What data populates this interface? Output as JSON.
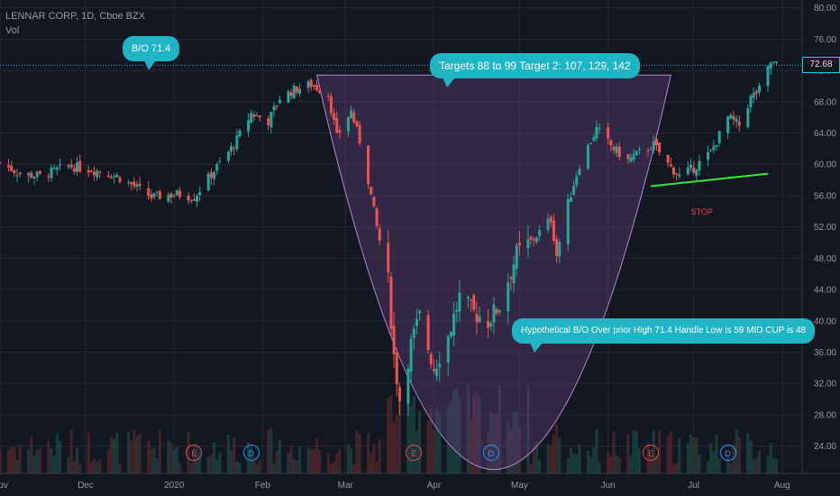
{
  "header": {
    "symbol_line": "LENNAR CORP, 1D, Cboe BZX",
    "volume_label": "Vol"
  },
  "last_price": "72.68",
  "colors": {
    "background": "#131722",
    "up": "#26a69a",
    "down": "#ef5350",
    "cup_fill": "#5c3b73",
    "cup_line": "#b388d9",
    "trendline": "#39e639",
    "callout": "#1fb5c4"
  },
  "annotations": {
    "bo_label": "B/O 71.4",
    "targets": "Targets  88 to 99 Target 2: 107, 129, 142",
    "hypothetical": "Hypothetical B/O Over prior High 71.4 Handle Low is 59 MID CUP is 48",
    "stop": "STOP"
  },
  "events": [
    {
      "type": "E",
      "date": "2020-01-08"
    },
    {
      "type": "D",
      "date": "2020-01-28"
    },
    {
      "type": "E",
      "date": "2020-03-25"
    },
    {
      "type": "D",
      "date": "2020-04-21"
    },
    {
      "type": "E",
      "date": "2020-06-16"
    },
    {
      "type": "D",
      "date": "2020-07-13"
    }
  ],
  "chart_data": {
    "type": "candlestick",
    "y_ticks": [
      "80.00",
      "76.00",
      "72.00",
      "68.00",
      "64.00",
      "60.00",
      "56.00",
      "52.00",
      "48.00",
      "44.00",
      "40.00",
      "36.00",
      "32.00",
      "28.00",
      "24.00"
    ],
    "x_ticks": [
      {
        "label": "Nov",
        "date": "2019-11-01"
      },
      {
        "label": "Dec",
        "date": "2019-12-01"
      },
      {
        "label": "2020",
        "date": "2020-01-01"
      },
      {
        "label": "Feb",
        "date": "2020-02-01"
      },
      {
        "label": "Mar",
        "date": "2020-03-01"
      },
      {
        "label": "Apr",
        "date": "2020-04-01"
      },
      {
        "label": "May",
        "date": "2020-05-01"
      },
      {
        "label": "Jun",
        "date": "2020-06-01"
      },
      {
        "label": "Jul",
        "date": "2020-07-01"
      },
      {
        "label": "Aug",
        "date": "2020-08-01"
      }
    ],
    "ylim": [
      20.5,
      81
    ],
    "xlim": [
      "2019-11-01",
      "2020-08-08"
    ],
    "breakout_level": 72.68,
    "price_path": [
      [
        "2019-11-01",
        60.2
      ],
      [
        "2019-11-08",
        58.8
      ],
      [
        "2019-11-15",
        58.5
      ],
      [
        "2019-11-25",
        59.8
      ],
      [
        "2019-12-05",
        59.2
      ],
      [
        "2019-12-12",
        58.5
      ],
      [
        "2019-12-18",
        57.2
      ],
      [
        "2019-12-24",
        55.8
      ],
      [
        "2020-01-02",
        56.2
      ],
      [
        "2020-01-08",
        55.8
      ],
      [
        "2020-01-15",
        59.2
      ],
      [
        "2020-01-22",
        62.5
      ],
      [
        "2020-01-28",
        66.5
      ],
      [
        "2020-02-03",
        65.5
      ],
      [
        "2020-02-07",
        68.5
      ],
      [
        "2020-02-12",
        69.5
      ],
      [
        "2020-02-18",
        70.2
      ],
      [
        "2020-02-24",
        69.0
      ],
      [
        "2020-02-27",
        63.5
      ],
      [
        "2020-03-03",
        66.8
      ],
      [
        "2020-03-06",
        63.0
      ],
      [
        "2020-03-09",
        58.0
      ],
      [
        "2020-03-12",
        52.0
      ],
      [
        "2020-03-16",
        45.0
      ],
      [
        "2020-03-18",
        35.5
      ],
      [
        "2020-03-20",
        30.0
      ],
      [
        "2020-03-24",
        37.0
      ],
      [
        "2020-03-27",
        40.5
      ],
      [
        "2020-04-01",
        34.0
      ],
      [
        "2020-04-06",
        38.0
      ],
      [
        "2020-04-10",
        43.0
      ],
      [
        "2020-04-15",
        41.0
      ],
      [
        "2020-04-20",
        40.0
      ],
      [
        "2020-04-24",
        42.0
      ],
      [
        "2020-04-30",
        48.5
      ],
      [
        "2020-05-06",
        50.5
      ],
      [
        "2020-05-12",
        53.0
      ],
      [
        "2020-05-14",
        48.5
      ],
      [
        "2020-05-18",
        55.0
      ],
      [
        "2020-05-22",
        60.0
      ],
      [
        "2020-05-28",
        64.5
      ],
      [
        "2020-06-03",
        62.0
      ],
      [
        "2020-06-08",
        60.5
      ],
      [
        "2020-06-12",
        61.5
      ],
      [
        "2020-06-17",
        62.5
      ],
      [
        "2020-06-22",
        60.0
      ],
      [
        "2020-06-26",
        58.5
      ],
      [
        "2020-07-01",
        59.5
      ],
      [
        "2020-07-07",
        61.5
      ],
      [
        "2020-07-13",
        66.0
      ],
      [
        "2020-07-17",
        65.0
      ],
      [
        "2020-07-21",
        68.5
      ],
      [
        "2020-07-24",
        69.5
      ],
      [
        "2020-07-28",
        73.0
      ],
      [
        "2020-07-30",
        72.7
      ]
    ],
    "cup": {
      "left": {
        "date": "2020-02-20",
        "price": 71.4
      },
      "bottom": {
        "date": "2020-04-22",
        "price": 21.0
      },
      "right": {
        "date": "2020-06-23",
        "price": 71.4
      }
    },
    "support_line": [
      {
        "date": "2020-06-16",
        "price": 57.2
      },
      {
        "date": "2020-07-27",
        "price": 58.8
      }
    ],
    "stop_label_anchor": {
      "date": "2020-06-30",
      "price": 53.8
    }
  }
}
